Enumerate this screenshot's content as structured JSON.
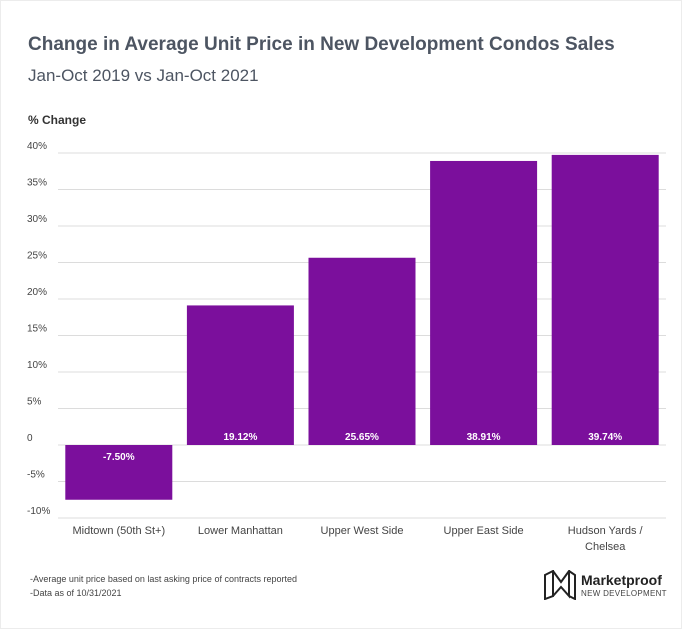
{
  "title": "Change in Average Unit Price in New Development Condos Sales",
  "subtitle": "Jan-Oct 2019 vs Jan-Oct 2021",
  "footnotes": [
    "-Average unit price based on last asking price of contracts reported",
    "-Data as of 10/31/2021"
  ],
  "logo": {
    "name": "Marketproof",
    "tagline": "NEW DEVELOPMENT",
    "icon": "marketproof-logo-icon"
  },
  "colors": {
    "bar": "#7b0f9c",
    "grid": "#dcdcdc",
    "text": "#4d5562"
  },
  "chart_data": {
    "type": "bar",
    "ylabel": "% Change",
    "xlabel": "",
    "ylim": [
      -10,
      40
    ],
    "yticks": [
      40,
      35,
      30,
      25,
      20,
      15,
      10,
      5,
      0,
      -5,
      -10
    ],
    "ytick_labels": [
      "40%",
      "35%",
      "30%",
      "25%",
      "20%",
      "15%",
      "10%",
      "5%",
      "0",
      "-5%",
      "-10%"
    ],
    "categories": [
      [
        "Midtown (50th St+)"
      ],
      [
        "Lower Manhattan"
      ],
      [
        "Upper West Side"
      ],
      [
        "Upper East Side"
      ],
      [
        "Hudson Yards /",
        "Chelsea"
      ]
    ],
    "values": [
      -7.5,
      19.12,
      25.65,
      38.91,
      39.74
    ],
    "data_labels": [
      "-7.50%",
      "19.12%",
      "25.65%",
      "38.91%",
      "39.74%"
    ],
    "grid": true,
    "legend": "none"
  }
}
